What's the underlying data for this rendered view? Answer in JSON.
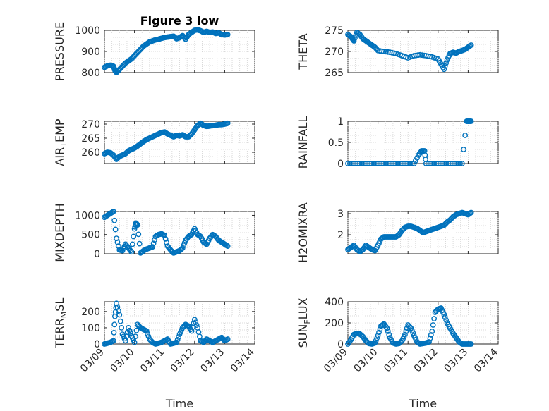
{
  "figure": {
    "title": "Figure 3 low",
    "background": "#ffffff",
    "marker_color": "#0072bd"
  },
  "chart_data": [
    {
      "id": "pressure",
      "type": "scatter",
      "title": "Figure 3 low",
      "ylabel": "PRESSURE",
      "xlabel": "",
      "xlim": [
        "03/09",
        "03/14"
      ],
      "xticks": [
        "03/09",
        "03/10",
        "03/11",
        "03/12",
        "03/13",
        "03/14"
      ],
      "ylim": [
        800,
        1000
      ],
      "yticks": [
        800,
        900,
        1000
      ],
      "grid": "on",
      "x": [
        0.0,
        0.1,
        0.2,
        0.3,
        0.35,
        0.4,
        0.5,
        0.6,
        0.7,
        0.8,
        0.9,
        1.0,
        1.1,
        1.2,
        1.3,
        1.4,
        1.5,
        1.6,
        1.7,
        1.8,
        1.9,
        2.0,
        2.1,
        2.2,
        2.3,
        2.4,
        2.5,
        2.6,
        2.7,
        2.8,
        2.9,
        3.0,
        3.1,
        3.2,
        3.3,
        3.4,
        3.5,
        3.6,
        3.7,
        3.8,
        3.9,
        4.0,
        4.1
      ],
      "y": [
        825,
        832,
        835,
        830,
        810,
        800,
        815,
        830,
        845,
        855,
        865,
        880,
        895,
        910,
        925,
        935,
        945,
        950,
        955,
        958,
        962,
        966,
        968,
        970,
        972,
        960,
        965,
        975,
        958,
        980,
        990,
        1000,
        1002,
        998,
        990,
        995,
        990,
        992,
        985,
        988,
        980,
        978,
        980
      ]
    },
    {
      "id": "theta",
      "type": "scatter",
      "ylabel": "THETA",
      "xlabel": "",
      "xlim": [
        "03/09",
        "03/14"
      ],
      "xticks": [
        "03/09",
        "03/10",
        "03/11",
        "03/12",
        "03/13",
        "03/14"
      ],
      "ylim": [
        265,
        275
      ],
      "yticks": [
        265,
        270,
        275
      ],
      "grid": "on",
      "x": [
        0.0,
        0.1,
        0.15,
        0.2,
        0.3,
        0.4,
        0.5,
        0.6,
        0.7,
        0.8,
        0.9,
        1.0,
        1.2,
        1.4,
        1.6,
        1.8,
        2.0,
        2.2,
        2.4,
        2.6,
        2.8,
        3.0,
        3.1,
        3.2,
        3.3,
        3.4,
        3.5,
        3.6,
        3.7,
        3.8,
        3.9,
        4.0,
        4.1
      ],
      "y": [
        274,
        273.5,
        273,
        272.5,
        274.5,
        274,
        273,
        272.5,
        272,
        271.5,
        271,
        270.2,
        270,
        269.8,
        269.5,
        269,
        268.5,
        269,
        269.2,
        269,
        268.7,
        268.2,
        267,
        265.8,
        268,
        269.5,
        269.8,
        269.6,
        270,
        270.2,
        270.5,
        271,
        271.5
      ]
    },
    {
      "id": "air_temp",
      "type": "scatter",
      "ylabel": "AIR_TEMP",
      "xlabel": "",
      "xlim": [
        "03/09",
        "03/14"
      ],
      "xticks": [
        "03/09",
        "03/10",
        "03/11",
        "03/12",
        "03/13",
        "03/14"
      ],
      "ylim": [
        256,
        271
      ],
      "yticks": [
        260,
        265,
        270
      ],
      "grid": "on",
      "x": [
        0.0,
        0.1,
        0.2,
        0.3,
        0.4,
        0.5,
        0.6,
        0.7,
        0.8,
        0.9,
        1.0,
        1.1,
        1.2,
        1.3,
        1.4,
        1.5,
        1.6,
        1.7,
        1.8,
        1.9,
        2.0,
        2.1,
        2.2,
        2.3,
        2.4,
        2.5,
        2.6,
        2.7,
        2.8,
        2.9,
        3.0,
        3.1,
        3.2,
        3.3,
        3.4,
        3.5,
        3.6,
        3.7,
        3.8,
        3.9,
        4.0,
        4.1
      ],
      "y": [
        259.5,
        260,
        259.8,
        259,
        257.5,
        258.5,
        259,
        259.5,
        260.5,
        261,
        261.5,
        262.2,
        263,
        263.8,
        264.5,
        265,
        265.5,
        266,
        266.5,
        267,
        267.2,
        266.5,
        266,
        265.5,
        266,
        265.8,
        266.2,
        265.5,
        265.5,
        266.5,
        268,
        269.5,
        270.3,
        269.5,
        269.2,
        269.3,
        269.5,
        269.6,
        269.8,
        269.8,
        270,
        270.3
      ]
    },
    {
      "id": "rainfall",
      "type": "scatter",
      "ylabel": "RAINFALL",
      "xlabel": "",
      "xlim": [
        "03/09",
        "03/14"
      ],
      "xticks": [
        "03/09",
        "03/10",
        "03/11",
        "03/12",
        "03/13",
        "03/14"
      ],
      "ylim": [
        0,
        1
      ],
      "yticks": [
        0,
        0.5,
        1
      ],
      "grid": "on",
      "x": [
        0.0,
        0.2,
        0.4,
        0.6,
        0.8,
        1.0,
        1.2,
        1.4,
        1.6,
        1.8,
        2.0,
        2.2,
        2.35,
        2.45,
        2.55,
        2.6,
        2.8,
        3.0,
        3.2,
        3.4,
        3.6,
        3.8,
        3.95,
        4.0,
        4.05,
        4.1
      ],
      "y": [
        0,
        0,
        0,
        0,
        0,
        0,
        0,
        0,
        0,
        0,
        0,
        0,
        0.2,
        0.3,
        0.3,
        0,
        0,
        0,
        0,
        0,
        0,
        0,
        1,
        1,
        1,
        1
      ]
    },
    {
      "id": "mixdepth",
      "type": "scatter",
      "ylabel": "MIXDEPTH",
      "xlabel": "",
      "xlim": [
        "03/09",
        "03/14"
      ],
      "xticks": [
        "03/09",
        "03/10",
        "03/11",
        "03/12",
        "03/13",
        "03/14"
      ],
      "ylim": [
        0,
        1100
      ],
      "yticks": [
        0,
        500,
        1000
      ],
      "grid": "on",
      "x": [
        0.0,
        0.1,
        0.2,
        0.3,
        0.4,
        0.5,
        0.6,
        0.7,
        0.8,
        0.9,
        1.0,
        1.05,
        1.1,
        1.2,
        1.3,
        1.4,
        1.5,
        1.6,
        1.7,
        1.8,
        1.9,
        2.0,
        2.1,
        2.2,
        2.3,
        2.4,
        2.5,
        2.6,
        2.7,
        2.8,
        2.9,
        3.0,
        3.1,
        3.2,
        3.3,
        3.4,
        3.5,
        3.6,
        3.7,
        3.8,
        3.9,
        4.0,
        4.1
      ],
      "y": [
        950,
        1000,
        1050,
        1100,
        400,
        100,
        80,
        250,
        150,
        50,
        650,
        800,
        750,
        20,
        80,
        120,
        150,
        180,
        450,
        500,
        520,
        480,
        200,
        100,
        20,
        50,
        80,
        150,
        350,
        450,
        500,
        650,
        500,
        450,
        300,
        250,
        400,
        500,
        450,
        350,
        300,
        250,
        200
      ]
    },
    {
      "id": "h2omixra",
      "type": "scatter",
      "ylabel": "H2OMIXRA",
      "xlabel": "",
      "xlim": [
        "03/09",
        "03/14"
      ],
      "xticks": [
        "03/09",
        "03/10",
        "03/11",
        "03/12",
        "03/13",
        "03/14"
      ],
      "ylim": [
        1.1,
        3.1
      ],
      "yticks": [
        2,
        3
      ],
      "grid": "on",
      "x": [
        0.0,
        0.1,
        0.2,
        0.3,
        0.4,
        0.5,
        0.6,
        0.7,
        0.8,
        0.9,
        1.0,
        1.1,
        1.2,
        1.3,
        1.4,
        1.5,
        1.6,
        1.7,
        1.8,
        1.9,
        2.0,
        2.1,
        2.2,
        2.3,
        2.4,
        2.5,
        2.6,
        2.7,
        2.8,
        2.9,
        3.0,
        3.1,
        3.2,
        3.3,
        3.4,
        3.5,
        3.6,
        3.7,
        3.8,
        3.9,
        4.0,
        4.1
      ],
      "y": [
        1.3,
        1.4,
        1.5,
        1.3,
        1.2,
        1.3,
        1.5,
        1.4,
        1.3,
        1.25,
        1.5,
        1.8,
        1.9,
        1.9,
        1.9,
        1.9,
        1.9,
        2.0,
        2.2,
        2.35,
        2.4,
        2.4,
        2.35,
        2.3,
        2.2,
        2.1,
        2.15,
        2.2,
        2.25,
        2.3,
        2.35,
        2.4,
        2.45,
        2.6,
        2.7,
        2.85,
        2.95,
        3.0,
        3.05,
        3.0,
        2.95,
        3.05
      ]
    },
    {
      "id": "terr_msl",
      "type": "scatter",
      "ylabel": "TERR_MSL",
      "xlabel": "Time",
      "xlim": [
        "03/09",
        "03/14"
      ],
      "xticks": [
        "03/09",
        "03/10",
        "03/11",
        "03/12",
        "03/13",
        "03/14"
      ],
      "ylim": [
        0,
        260
      ],
      "yticks": [
        0,
        100,
        200
      ],
      "grid": "on",
      "x": [
        0.0,
        0.1,
        0.2,
        0.3,
        0.35,
        0.4,
        0.5,
        0.6,
        0.7,
        0.8,
        0.9,
        1.0,
        1.1,
        1.2,
        1.3,
        1.4,
        1.5,
        1.6,
        1.7,
        1.8,
        1.9,
        2.0,
        2.1,
        2.2,
        2.3,
        2.4,
        2.5,
        2.6,
        2.7,
        2.8,
        2.9,
        3.0,
        3.1,
        3.2,
        3.3,
        3.4,
        3.5,
        3.6,
        3.7,
        3.8,
        3.9,
        4.0,
        4.1
      ],
      "y": [
        0,
        5,
        10,
        20,
        170,
        250,
        180,
        60,
        20,
        100,
        50,
        10,
        120,
        100,
        90,
        80,
        30,
        10,
        0,
        5,
        10,
        20,
        30,
        0,
        5,
        10,
        60,
        100,
        120,
        110,
        80,
        150,
        100,
        20,
        10,
        30,
        20,
        10,
        20,
        30,
        40,
        20,
        30
      ]
    },
    {
      "id": "sun_flux",
      "type": "scatter",
      "ylabel": "SUN_FLUX",
      "xlabel": "Time",
      "xlim": [
        "03/09",
        "03/14"
      ],
      "xticks": [
        "03/09",
        "03/10",
        "03/11",
        "03/12",
        "03/13",
        "03/14"
      ],
      "ylim": [
        0,
        400
      ],
      "yticks": [
        0,
        200,
        400
      ],
      "grid": "on",
      "x": [
        0.0,
        0.1,
        0.2,
        0.3,
        0.4,
        0.5,
        0.6,
        0.7,
        0.8,
        0.9,
        1.0,
        1.1,
        1.2,
        1.3,
        1.4,
        1.5,
        1.6,
        1.7,
        1.8,
        1.9,
        2.0,
        2.1,
        2.2,
        2.3,
        2.4,
        2.5,
        2.6,
        2.7,
        2.8,
        2.9,
        3.0,
        3.1,
        3.2,
        3.3,
        3.4,
        3.5,
        3.6,
        3.7,
        3.8,
        3.9,
        4.0,
        4.1
      ],
      "y": [
        0,
        40,
        90,
        100,
        95,
        70,
        30,
        5,
        0,
        10,
        80,
        170,
        190,
        150,
        60,
        10,
        0,
        5,
        30,
        90,
        180,
        150,
        80,
        20,
        0,
        5,
        10,
        20,
        120,
        300,
        330,
        340,
        280,
        200,
        150,
        100,
        60,
        20,
        0,
        0,
        0,
        0
      ]
    }
  ]
}
